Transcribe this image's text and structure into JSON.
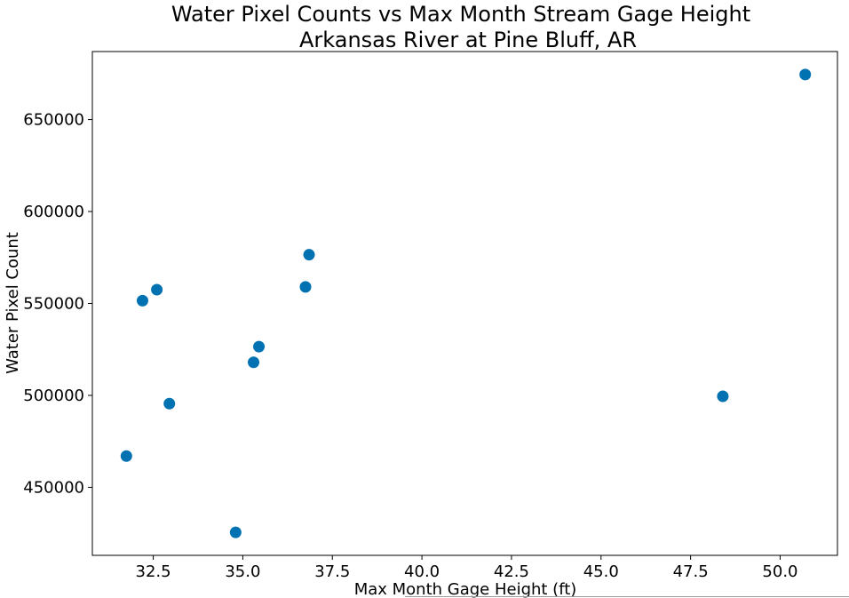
{
  "chart_data": {
    "type": "scatter",
    "title": [
      "Water Pixel Counts vs Max Month Stream Gage Height",
      "Arkansas River at Pine Bluff, AR"
    ],
    "xlabel": "Max Month Gage Height (ft)",
    "ylabel": "Water Pixel Count",
    "xlim": [
      30.8,
      51.6
    ],
    "ylim": [
      413000,
      687000
    ],
    "xticks": [
      "32.5",
      "35.0",
      "37.5",
      "40.0",
      "42.5",
      "45.0",
      "47.5",
      "50.0"
    ],
    "yticks": [
      "450000",
      "500000",
      "550000",
      "600000",
      "650000"
    ],
    "grid": false,
    "marker_color": "#0072b2",
    "points": [
      {
        "x": 31.75,
        "y": 467000
      },
      {
        "x": 32.2,
        "y": 551500
      },
      {
        "x": 32.6,
        "y": 557500
      },
      {
        "x": 32.95,
        "y": 495500
      },
      {
        "x": 34.8,
        "y": 425500
      },
      {
        "x": 35.3,
        "y": 518000
      },
      {
        "x": 35.45,
        "y": 526500
      },
      {
        "x": 36.75,
        "y": 559000
      },
      {
        "x": 36.85,
        "y": 576500
      },
      {
        "x": 48.4,
        "y": 499500
      },
      {
        "x": 50.7,
        "y": 674500
      }
    ]
  }
}
